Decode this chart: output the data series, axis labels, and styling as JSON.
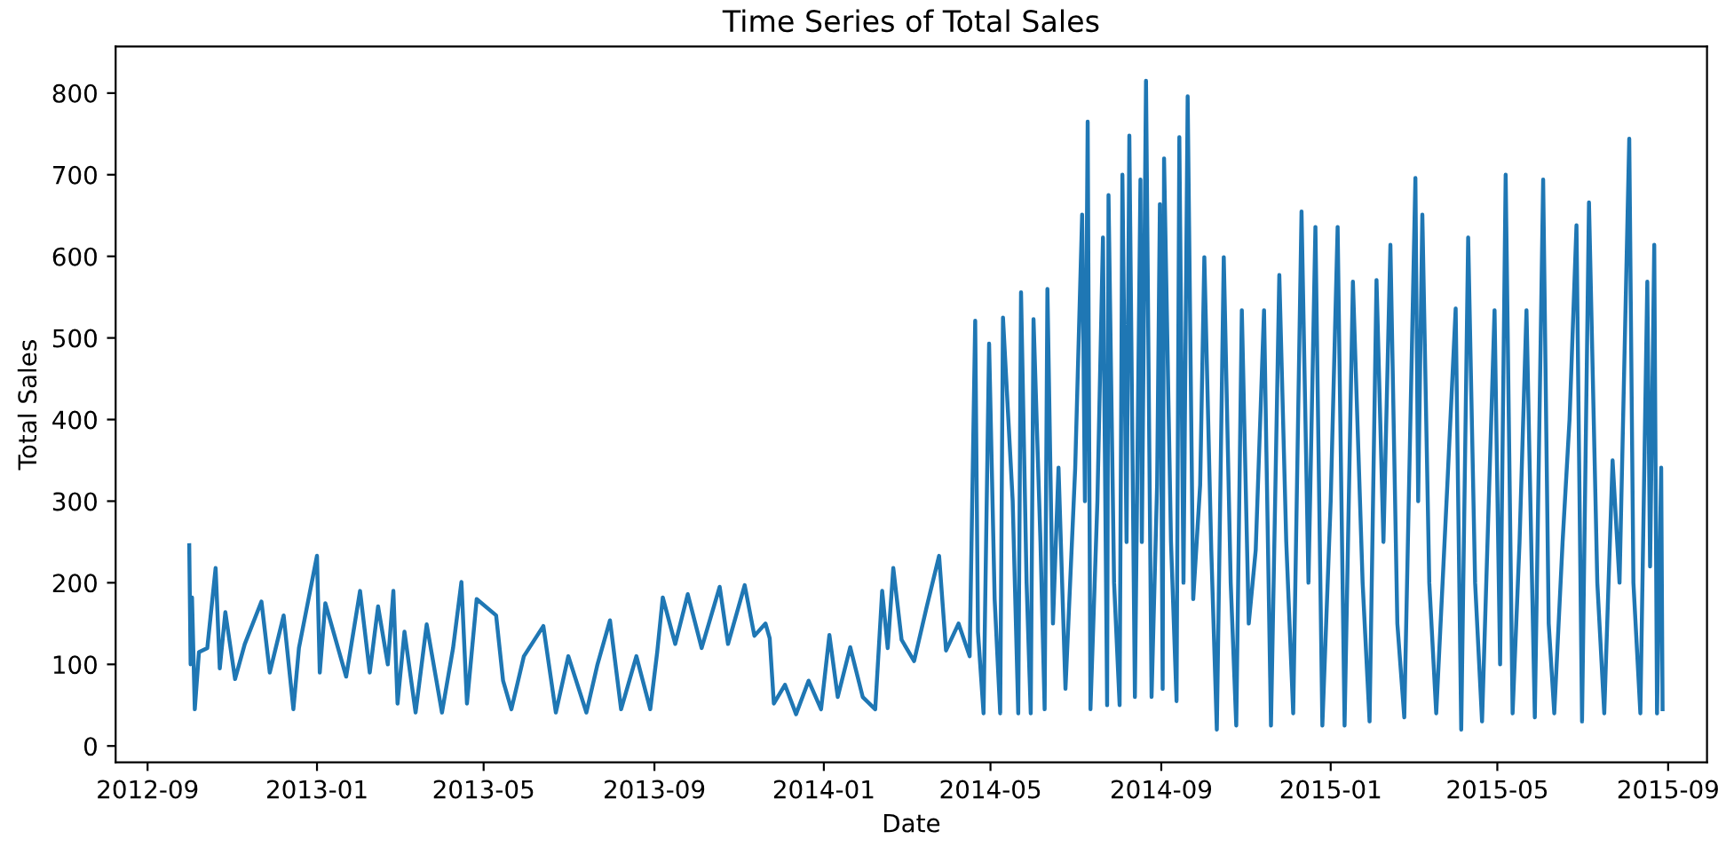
{
  "chart_data": {
    "type": "line",
    "title": "Time Series of Total Sales",
    "xlabel": "Date",
    "ylabel": "Total Sales",
    "x": [
      "2012-10-01",
      "2012-10-02",
      "2012-10-03",
      "2012-10-05",
      "2012-10-08",
      "2012-10-14",
      "2012-10-20",
      "2012-10-23",
      "2012-10-27",
      "2012-11-03",
      "2012-11-10",
      "2012-11-22",
      "2012-11-28",
      "2012-12-08",
      "2012-12-15",
      "2012-12-19",
      "2013-01-01",
      "2013-01-03",
      "2013-01-07",
      "2013-01-22",
      "2013-02-01",
      "2013-02-08",
      "2013-02-14",
      "2013-02-21",
      "2013-02-25",
      "2013-02-28",
      "2013-03-05",
      "2013-03-13",
      "2013-03-21",
      "2013-04-01",
      "2013-04-09",
      "2013-04-15",
      "2013-04-19",
      "2013-04-26",
      "2013-05-10",
      "2013-05-15",
      "2013-05-21",
      "2013-05-30",
      "2013-06-13",
      "2013-06-22",
      "2013-07-01",
      "2013-07-14",
      "2013-07-22",
      "2013-07-31",
      "2013-08-08",
      "2013-08-19",
      "2013-08-29",
      "2013-09-03",
      "2013-09-07",
      "2013-09-16",
      "2013-09-25",
      "2013-10-05",
      "2013-10-18",
      "2013-10-24",
      "2013-11-05",
      "2013-11-12",
      "2013-11-20",
      "2013-11-23",
      "2013-11-26",
      "2013-12-04",
      "2013-12-12",
      "2013-12-21",
      "2013-12-30",
      "2014-01-05",
      "2014-01-11",
      "2014-01-20",
      "2014-01-29",
      "2014-02-07",
      "2014-02-12",
      "2014-02-16",
      "2014-02-20",
      "2014-02-26",
      "2014-03-07",
      "2014-03-16",
      "2014-03-25",
      "2014-03-30",
      "2014-04-08",
      "2014-04-16",
      "2014-04-20",
      "2014-04-22",
      "2014-04-26",
      "2014-04-30",
      "2014-05-04",
      "2014-05-08",
      "2014-05-10",
      "2014-05-17",
      "2014-05-21",
      "2014-05-23",
      "2014-05-27",
      "2014-05-30",
      "2014-06-01",
      "2014-06-06",
      "2014-06-09",
      "2014-06-11",
      "2014-06-15",
      "2014-06-19",
      "2014-06-24",
      "2014-07-01",
      "2014-07-06",
      "2014-07-08",
      "2014-07-10",
      "2014-07-12",
      "2014-07-17",
      "2014-07-21",
      "2014-07-24",
      "2014-07-25",
      "2014-07-29",
      "2014-08-02",
      "2014-08-04",
      "2014-08-07",
      "2014-08-09",
      "2014-08-13",
      "2014-08-17",
      "2014-08-18",
      "2014-08-21",
      "2014-08-25",
      "2014-08-29",
      "2014-08-31",
      "2014-09-02",
      "2014-09-03",
      "2014-09-08",
      "2014-09-12",
      "2014-09-14",
      "2014-09-17",
      "2014-09-20",
      "2014-09-24",
      "2014-09-29",
      "2014-10-02",
      "2014-10-07",
      "2014-10-11",
      "2014-10-16",
      "2014-10-21",
      "2014-10-25",
      "2014-10-29",
      "2014-11-03",
      "2014-11-08",
      "2014-11-14",
      "2014-11-19",
      "2014-11-25",
      "2014-11-30",
      "2014-12-05",
      "2014-12-11",
      "2014-12-16",
      "2014-12-21",
      "2014-12-26",
      "2015-01-01",
      "2015-01-06",
      "2015-01-11",
      "2015-01-17",
      "2015-01-24",
      "2015-01-29",
      "2015-02-03",
      "2015-02-08",
      "2015-02-13",
      "2015-02-18",
      "2015-02-23",
      "2015-03-03",
      "2015-03-05",
      "2015-03-08",
      "2015-03-13",
      "2015-03-18",
      "2015-03-26",
      "2015-04-01",
      "2015-04-05",
      "2015-04-10",
      "2015-04-15",
      "2015-04-20",
      "2015-04-29",
      "2015-05-03",
      "2015-05-07",
      "2015-05-12",
      "2015-05-17",
      "2015-05-22",
      "2015-05-28",
      "2015-06-03",
      "2015-06-07",
      "2015-06-11",
      "2015-06-17",
      "2015-06-22",
      "2015-06-27",
      "2015-07-01",
      "2015-07-06",
      "2015-07-12",
      "2015-07-17",
      "2015-07-23",
      "2015-07-28",
      "2015-08-04",
      "2015-08-07",
      "2015-08-12",
      "2015-08-17",
      "2015-08-19",
      "2015-08-22",
      "2015-08-24",
      "2015-08-27",
      "2015-08-28"
    ],
    "series": [
      {
        "color": "#1f77b4",
        "values": [
          246,
          100,
          182,
          45,
          115,
          120,
          218,
          95,
          164,
          82,
          125,
          177,
          90,
          160,
          45,
          120,
          233,
          90,
          175,
          85,
          190,
          90,
          171,
          100,
          190,
          52,
          140,
          41,
          149,
          41,
          120,
          201,
          52,
          180,
          160,
          80,
          45,
          110,
          147,
          41,
          110,
          41,
          100,
          154,
          45,
          110,
          45,
          115,
          182,
          125,
          186,
          120,
          195,
          125,
          197,
          135,
          150,
          132,
          52,
          75,
          39,
          80,
          45,
          136,
          60,
          121,
          60,
          45,
          190,
          120,
          218,
          130,
          104,
          170,
          233,
          117,
          150,
          110,
          521,
          140,
          40,
          493,
          180,
          40,
          525,
          300,
          40,
          556,
          200,
          40,
          523,
          250,
          45,
          560,
          150,
          341,
          70,
          340,
          651,
          300,
          765,
          45,
          300,
          623,
          50,
          675,
          200,
          50,
          700,
          250,
          748,
          60,
          694,
          250,
          815,
          60,
          320,
          664,
          70,
          720,
          250,
          55,
          746,
          200,
          796,
          180,
          320,
          599,
          240,
          20,
          599,
          200,
          25,
          534,
          150,
          240,
          534,
          25,
          577,
          250,
          40,
          655,
          200,
          636,
          25,
          300,
          636,
          25,
          569,
          200,
          30,
          571,
          250,
          614,
          150,
          35,
          696,
          300,
          651,
          200,
          40,
          320,
          536,
          20,
          623,
          200,
          30,
          534,
          100,
          700,
          40,
          250,
          534,
          35,
          694,
          150,
          40,
          250,
          400,
          638,
          30,
          666,
          200,
          40,
          350,
          200,
          744,
          200,
          40,
          569,
          220,
          614,
          40,
          341,
          45
        ]
      }
    ],
    "xlim": [
      "2012-08-09",
      "2015-09-29"
    ],
    "xticks": [
      "2012-09",
      "2013-01",
      "2013-05",
      "2013-09",
      "2014-01",
      "2014-05",
      "2014-09",
      "2015-01",
      "2015-05",
      "2015-09"
    ],
    "ylim": [
      -20,
      857
    ],
    "yticks": [
      0,
      100,
      200,
      300,
      400,
      500,
      600,
      700,
      800
    ],
    "grid": false,
    "legend": false
  }
}
